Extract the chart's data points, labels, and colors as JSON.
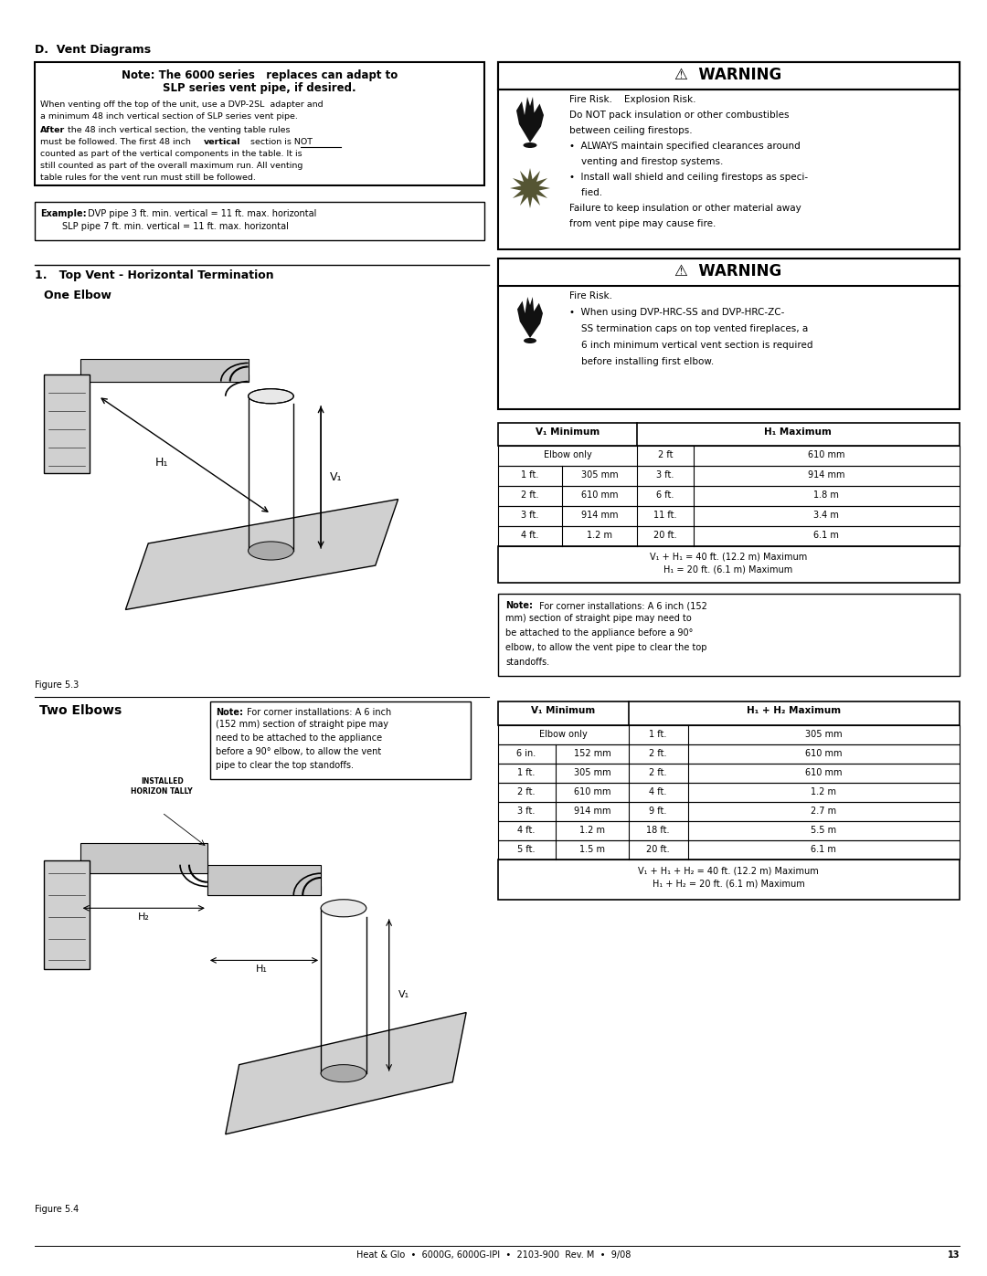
{
  "page_width": 10.8,
  "page_height": 13.97,
  "dpi": 100,
  "bg_color": "#ffffff",
  "title_d": "D.  Vent Diagrams",
  "warning1_title": "⚠  WARNING",
  "warning1_line1": "Fire Risk.    Explosion Risk.",
  "warning1_lines": [
    "Fire Risk.    Explosion Risk.",
    "Do NOT pack insulation or other combustibles",
    "between ceiling firestops.",
    "•  ALWAYS maintain specified clearances around",
    "    venting and firestop systems.",
    "•  Install wall shield and ceiling firestops as speci-",
    "    fied.",
    "Failure to keep insulation or other material away",
    "from vent pipe may cause fire."
  ],
  "warning2_title": "⚠  WARNING",
  "warning2_lines": [
    "Fire Risk.",
    "•  When using DVP-HRC-SS and DVP-HRC-ZC-",
    "    SS termination caps on top vented fireplaces, a",
    "    6 inch minimum vertical vent section is required",
    "    before installing first elbow."
  ],
  "section1_title": "1.   Top Vent - Horizontal Termination",
  "one_elbow_title": "One Elbow",
  "table1_header1": "V₁ Minimum",
  "table1_header2": "H₁ Maximum",
  "table1_rows": [
    [
      "Elbow only",
      "",
      "2 ft",
      "610 mm"
    ],
    [
      "1 ft.",
      "305 mm",
      "3 ft.",
      "914 mm"
    ],
    [
      "2 ft.",
      "610 mm",
      "6 ft.",
      "1.8 m"
    ],
    [
      "3 ft.",
      "914 mm",
      "11 ft.",
      "3.4 m"
    ],
    [
      "4 ft.",
      "1.2 m",
      "20 ft.",
      "6.1 m"
    ]
  ],
  "table1_footer1": "V₁ + H₁ = 40 ft. (12.2 m) Maximum",
  "table1_footer2": "H₁ = 20 ft. (6.1 m) Maximum",
  "note1_lines": [
    "Note: For corner installations: A 6 inch (152",
    "mm) section of straight pipe may need to",
    "be attached to the appliance before a 90°",
    "elbow, to allow the vent pipe to clear the top",
    "standoffs."
  ],
  "fig1_caption": "Figure 5.3",
  "two_elbows_title": "Two Elbows",
  "note2_lines": [
    "Note: For corner installations: A 6 inch",
    "(152 mm) section of straight pipe may",
    "need to be attached to the appliance",
    "before a 90° elbow, to allow the vent",
    "pipe to clear the top standoffs."
  ],
  "table2_header1": "V₁ Minimum",
  "table2_header2": "H₁ + H₂ Maximum",
  "table2_rows": [
    [
      "Elbow only",
      "",
      "1 ft.",
      "305 mm"
    ],
    [
      "6 in.",
      "152 mm",
      "2 ft.",
      "610 mm"
    ],
    [
      "1 ft.",
      "305 mm",
      "2 ft.",
      "610 mm"
    ],
    [
      "2 ft.",
      "610 mm",
      "4 ft.",
      "1.2 m"
    ],
    [
      "3 ft.",
      "914 mm",
      "9 ft.",
      "2.7 m"
    ],
    [
      "4 ft.",
      "1.2 m",
      "18 ft.",
      "5.5 m"
    ],
    [
      "5 ft.",
      "1.5 m",
      "20 ft.",
      "6.1 m"
    ]
  ],
  "table2_footer1": "V₁ + H₁ + H₂ = 40 ft. (12.2 m) Maximum",
  "table2_footer2": "H₁ + H₂ = 20 ft. (6.1 m) Maximum",
  "fig2_caption": "Figure 5.4",
  "footer_text": "Heat & Glo  •  6000G, 6000G-IPI  •  2103-900  Rev. M  •  9/08",
  "footer_page": "13"
}
